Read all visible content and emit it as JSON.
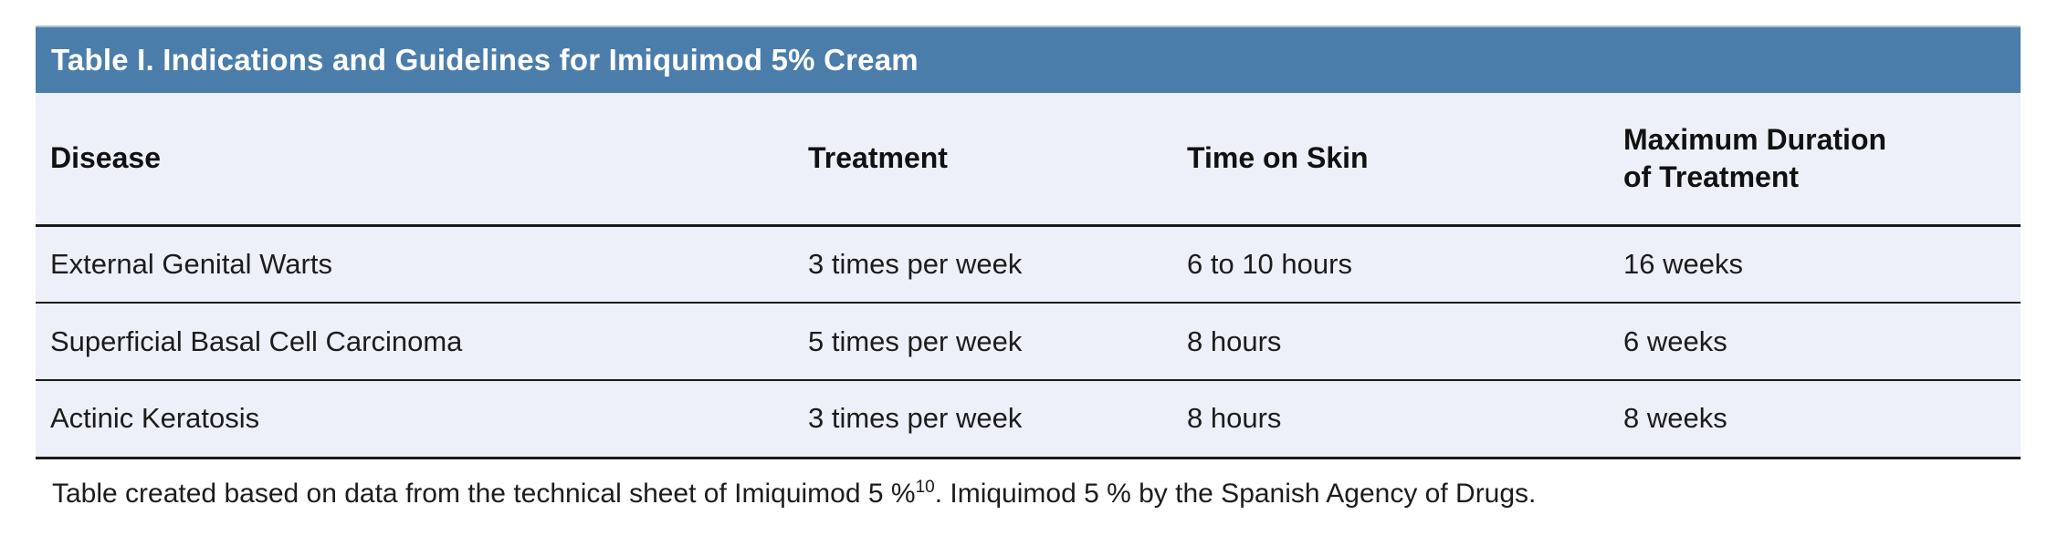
{
  "colors": {
    "title_bar_bg": "#4b7dab",
    "title_bar_top_edge": "#a9becf",
    "title_text": "#ffffff",
    "table_bg": "#edf0f8",
    "rule_lines": "#1a1a1a",
    "body_text": "#1c1c1c",
    "page_bg": "#ffffff"
  },
  "table": {
    "title": "Table I. Indications and Guidelines for Imiquimod 5% Cream",
    "columns": [
      "Disease",
      "Treatment",
      "Time on Skin",
      "Maximum Duration\nof Treatment"
    ],
    "rows": [
      [
        "External Genital Warts",
        "3 times per week",
        "6 to 10 hours",
        "16 weeks"
      ],
      [
        "Superficial Basal Cell Carcinoma",
        "5 times per week",
        "8 hours",
        "6 weeks"
      ],
      [
        "Actinic Keratosis",
        "3 times per week",
        "8 hours",
        "8 weeks"
      ]
    ]
  },
  "chart_data": {
    "type": "table",
    "title": "Table I. Indications and Guidelines for Imiquimod 5% Cream",
    "columns": [
      "Disease",
      "Treatment",
      "Time on Skin",
      "Maximum Duration of Treatment"
    ],
    "rows": [
      [
        "External Genital Warts",
        "3 times per week",
        "6 to 10 hours",
        "16 weeks"
      ],
      [
        "Superficial Basal Cell Carcinoma",
        "5 times per week",
        "8 hours",
        "6 weeks"
      ],
      [
        "Actinic Keratosis",
        "3 times per week",
        "8 hours",
        "8 weeks"
      ]
    ]
  },
  "footnote": {
    "text_before_sup": "Table created based on data from the technical sheet of Imiquimod 5 %",
    "sup": "10",
    "text_after_sup": ". Imiquimod 5 % by the Spanish Agency of Drugs."
  }
}
